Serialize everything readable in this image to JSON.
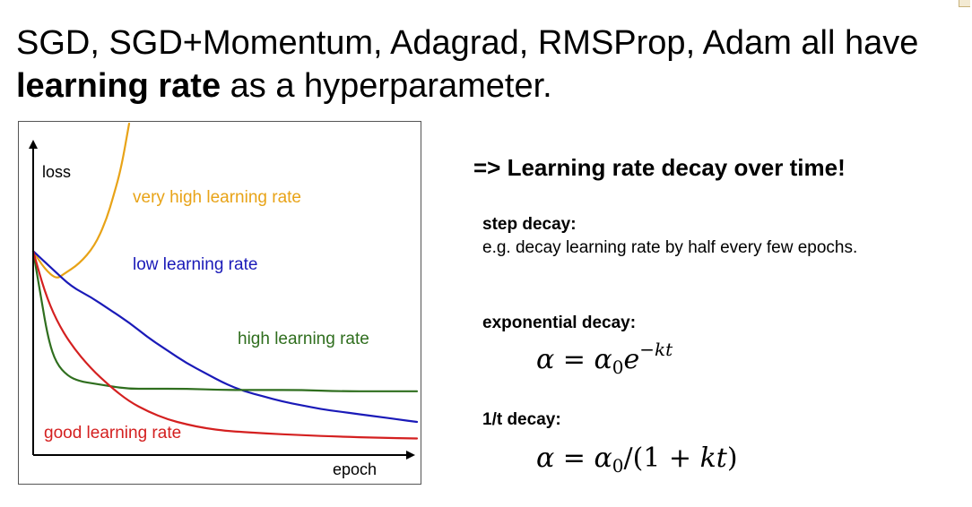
{
  "title": {
    "line1": "SGD, SGD+Momentum, Adagrad, RMSProp, Adam all have",
    "line2_bold": "learning rate",
    "line2_rest": " as a hyperparameter."
  },
  "right_panel": {
    "heading": "=> Learning rate decay over time!",
    "step": {
      "title": "step decay:",
      "desc": "e.g. decay learning rate by half every few epochs."
    },
    "exponential": {
      "title": "exponential decay:",
      "formula": "α = α0 e^(−kt)"
    },
    "one_over_t": {
      "title": "1/t decay:",
      "formula": "α = α0 / (1 + kt)"
    }
  },
  "chart_data": {
    "type": "line",
    "xlabel": "epoch",
    "ylabel": "loss",
    "series": [
      {
        "name": "very high learning rate",
        "color": "#e8a317",
        "x": [
          0,
          0.03,
          0.06,
          0.08,
          0.12,
          0.16,
          0.19,
          0.21,
          0.23,
          0.25
        ],
        "y": [
          0.8,
          0.73,
          0.69,
          0.71,
          0.75,
          0.82,
          0.92,
          1.02,
          1.13,
          1.3
        ]
      },
      {
        "name": "low learning rate",
        "color": "#1a1ab8",
        "x": [
          0,
          0.05,
          0.1,
          0.15,
          0.2,
          0.25,
          0.3,
          0.35,
          0.4,
          0.45,
          0.5,
          0.55,
          0.6,
          0.65,
          0.7,
          0.75,
          0.8,
          0.85,
          0.9,
          0.95,
          1.0
        ],
        "y": [
          0.8,
          0.73,
          0.66,
          0.62,
          0.57,
          0.52,
          0.46,
          0.41,
          0.36,
          0.32,
          0.28,
          0.25,
          0.23,
          0.21,
          0.195,
          0.18,
          0.17,
          0.16,
          0.15,
          0.14,
          0.13
        ]
      },
      {
        "name": "high learning rate",
        "color": "#2f6e1e",
        "x": [
          0,
          0.02,
          0.04,
          0.06,
          0.09,
          0.12,
          0.16,
          0.2,
          0.25,
          0.3,
          0.4,
          0.5,
          0.6,
          0.7,
          0.8,
          0.9,
          1.0
        ],
        "y": [
          0.8,
          0.62,
          0.45,
          0.36,
          0.31,
          0.29,
          0.28,
          0.27,
          0.26,
          0.26,
          0.26,
          0.255,
          0.255,
          0.255,
          0.25,
          0.25,
          0.25
        ]
      },
      {
        "name": "good learning rate",
        "color": "#d42020",
        "x": [
          0,
          0.03,
          0.06,
          0.1,
          0.15,
          0.2,
          0.25,
          0.3,
          0.35,
          0.4,
          0.45,
          0.5,
          0.6,
          0.7,
          0.8,
          0.9,
          1.0
        ],
        "y": [
          0.8,
          0.64,
          0.53,
          0.43,
          0.34,
          0.27,
          0.21,
          0.17,
          0.14,
          0.12,
          0.105,
          0.095,
          0.085,
          0.078,
          0.072,
          0.068,
          0.065
        ]
      }
    ],
    "xlim": [
      0,
      1
    ],
    "ylim": [
      0,
      1.3
    ],
    "grid": false,
    "legend": "inline labels"
  }
}
